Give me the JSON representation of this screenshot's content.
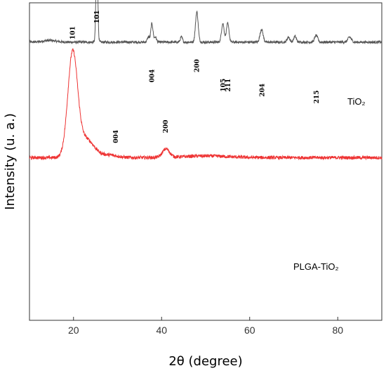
{
  "chart_data": {
    "type": "line",
    "xlabel": "2θ (degree)",
    "ylabel": "Intensity (u. a.)",
    "xlim": [
      10,
      90
    ],
    "x_ticks": [
      20,
      40,
      60,
      80
    ],
    "y_ticks_shown": false,
    "grid": false,
    "series": [
      {
        "name": "TiO₂",
        "color": "#555555",
        "baseline": 100,
        "noise": 1.5,
        "peaks": [
          {
            "x": 14.5,
            "h": 2,
            "w": 1.5
          },
          {
            "x": 25.3,
            "h": 110,
            "w": 0.2
          },
          {
            "x": 37.0,
            "h": 6,
            "w": 0.25
          },
          {
            "x": 37.8,
            "h": 22,
            "w": 0.25
          },
          {
            "x": 38.6,
            "h": 6,
            "w": 0.25
          },
          {
            "x": 44.5,
            "h": 6,
            "w": 0.25
          },
          {
            "x": 48.0,
            "h": 36,
            "w": 0.3
          },
          {
            "x": 53.9,
            "h": 22,
            "w": 0.3
          },
          {
            "x": 55.0,
            "h": 22,
            "w": 0.3
          },
          {
            "x": 62.7,
            "h": 15,
            "w": 0.35
          },
          {
            "x": 68.8,
            "h": 6,
            "w": 0.3
          },
          {
            "x": 70.3,
            "h": 7,
            "w": 0.3
          },
          {
            "x": 75.1,
            "h": 8,
            "w": 0.35
          },
          {
            "x": 82.7,
            "h": 6,
            "w": 0.4
          }
        ],
        "peak_labels": [
          {
            "text": "101",
            "x": 25.3,
            "level": 130
          },
          {
            "text": "004",
            "x": 37.8,
            "level": 60
          },
          {
            "text": "200",
            "x": 48.0,
            "level": 72
          },
          {
            "text": "105",
            "x": 54.0,
            "level": 49
          },
          {
            "text": "211",
            "x": 55.1,
            "level": 49
          },
          {
            "text": "204",
            "x": 62.8,
            "level": 43
          },
          {
            "text": "215",
            "x": 75.2,
            "level": 35
          }
        ],
        "label": "TiO₂"
      },
      {
        "name": "PLGA-TiO₂",
        "color": "#ee3333",
        "baseline": -37,
        "noise": 2.0,
        "peaks": [
          {
            "x": 19.8,
            "h": 122,
            "w": 1.1
          },
          {
            "x": 22.8,
            "h": 22,
            "w": 1.8
          },
          {
            "x": 28.0,
            "h": 3,
            "w": 2
          },
          {
            "x": 41.0,
            "h": 10,
            "w": 0.8
          },
          {
            "x": 50.0,
            "h": 2,
            "w": 5
          }
        ],
        "peak_labels": [
          {
            "text": "101",
            "x": 19.8,
            "level": 111
          },
          {
            "text": "004",
            "x": 29.6,
            "level": -12
          },
          {
            "text": "200",
            "x": 40.9,
            "level": 0
          }
        ],
        "label": "PLGA-TiO₂"
      }
    ]
  }
}
